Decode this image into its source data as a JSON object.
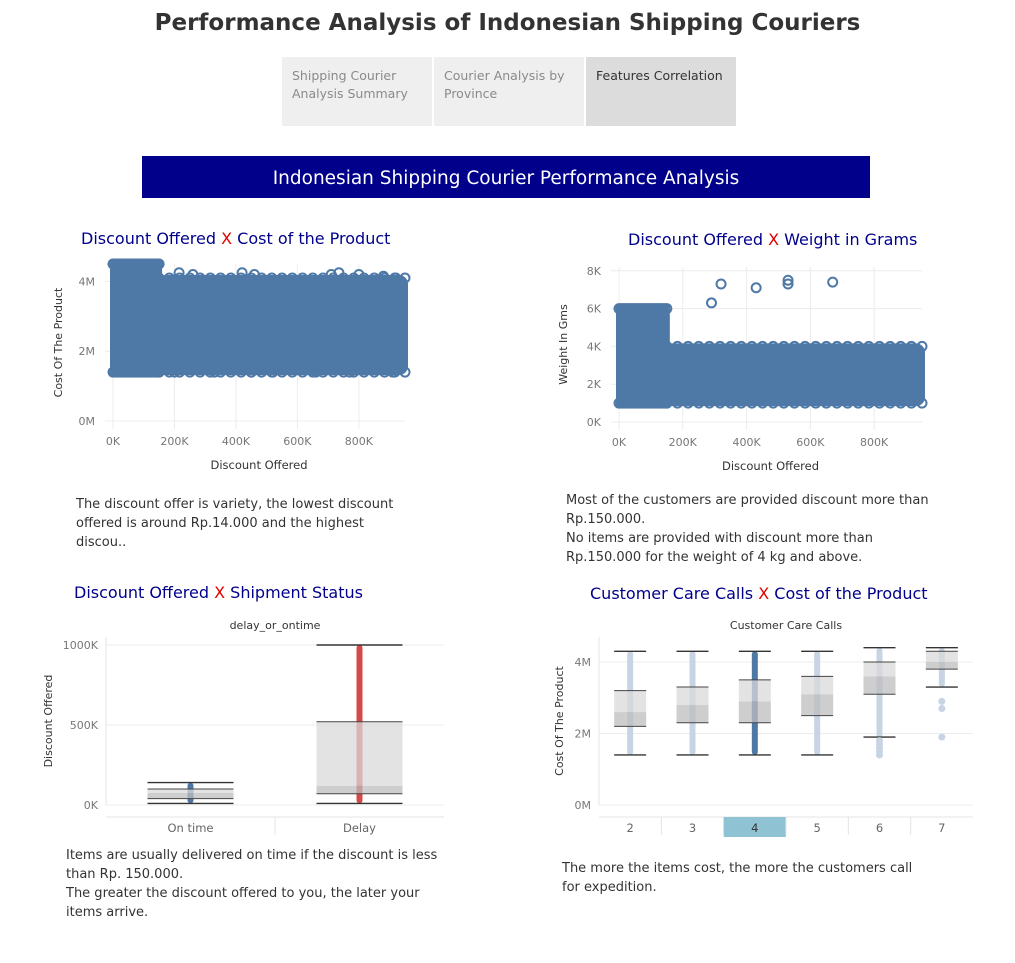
{
  "page": {
    "title": "Performance Analysis of Indonesian Shipping Couriers",
    "banner": "Indonesian Shipping Courier Performance Analysis"
  },
  "tabs": [
    {
      "label": "Shipping Courier Analysis Summary",
      "active": false
    },
    {
      "label": "Courier Analysis by Province",
      "active": false
    },
    {
      "label": "Features Correlation",
      "active": true
    }
  ],
  "colors": {
    "banner_bg": "#00008b",
    "title_blue": "#00008b",
    "x_red": "#e00000",
    "point_blue": "#4e79a7",
    "delay_red": "#d44a4a",
    "highlight": "#8fc3d4"
  },
  "charts": {
    "c1": {
      "title_a": "Discount Offered ",
      "title_x": "X",
      "title_b": " Cost of the Product",
      "desc": "The discount offer is variety, the lowest discount offered is around Rp.14.000 and the highest discou.."
    },
    "c2": {
      "title_a": "Discount Offered ",
      "title_x": "X",
      "title_b": " Weight in Grams",
      "desc_line1": "Most of the customers are provided discount more than Rp.150.000.",
      "desc_line2": "No items are provided with discount more than Rp.150.000 for the weight of 4 kg and above."
    },
    "c3": {
      "title_a": "Discount Offered ",
      "title_x": "X",
      "title_b": " Shipment Status",
      "desc_line1": "Items are usually delivered on time if the discount is less than Rp. 150.000.",
      "desc_line2": "The greater the discount offered to you, the later your items arrive."
    },
    "c4": {
      "title_a": "Customer Care Calls ",
      "title_x": "X",
      "title_b": " Cost of the Product",
      "desc": "The more the items cost, the more the customers call for expedition."
    }
  },
  "chart_data": [
    {
      "type": "scatter",
      "title": "Discount Offered X Cost of the Product",
      "xlabel": "Discount Offered",
      "ylabel": "Cost Of The Product",
      "xticks": [
        "0K",
        "200K",
        "400K",
        "600K",
        "800K"
      ],
      "yticks": [
        "0M",
        "2M",
        "4M"
      ],
      "xlim": [
        0,
        950000
      ],
      "ylim": [
        0,
        4500000
      ],
      "bands": [
        {
          "x": [
            0,
            150000
          ],
          "y": [
            1400000,
            4500000
          ]
        },
        {
          "x": [
            150000,
            950000
          ],
          "y": [
            1400000,
            4100000
          ]
        }
      ],
      "points": [
        {
          "x": 215000,
          "y": 4250000
        },
        {
          "x": 260000,
          "y": 4200000
        },
        {
          "x": 420000,
          "y": 4250000
        },
        {
          "x": 460000,
          "y": 4200000
        },
        {
          "x": 710000,
          "y": 4200000
        },
        {
          "x": 735000,
          "y": 4250000
        },
        {
          "x": 800000,
          "y": 4200000
        },
        {
          "x": 880000,
          "y": 4150000
        },
        {
          "x": 920000,
          "y": 4100000
        },
        {
          "x": 200000,
          "y": 1400000
        },
        {
          "x": 330000,
          "y": 1400000
        },
        {
          "x": 450000,
          "y": 1400000
        },
        {
          "x": 520000,
          "y": 1400000
        },
        {
          "x": 660000,
          "y": 1400000
        },
        {
          "x": 770000,
          "y": 1400000
        },
        {
          "x": 910000,
          "y": 1400000
        }
      ]
    },
    {
      "type": "scatter",
      "title": "Discount Offered X Weight in Grams",
      "xlabel": "Discount Offered",
      "ylabel": "Weight In Gms",
      "xticks": [
        "0K",
        "200K",
        "400K",
        "600K",
        "800K"
      ],
      "yticks": [
        "0K",
        "2K",
        "4K",
        "6K",
        "8K"
      ],
      "xlim": [
        0,
        950000
      ],
      "ylim": [
        0,
        8200
      ],
      "bands": [
        {
          "x": [
            0,
            150000
          ],
          "y": [
            1000,
            6000
          ]
        },
        {
          "x": [
            150000,
            950000
          ],
          "y": [
            1000,
            4000
          ]
        }
      ],
      "points": [
        {
          "x": 290000,
          "y": 6300
        },
        {
          "x": 320000,
          "y": 7300
        },
        {
          "x": 430000,
          "y": 7100
        },
        {
          "x": 530000,
          "y": 7300
        },
        {
          "x": 530000,
          "y": 7500
        },
        {
          "x": 670000,
          "y": 7400
        }
      ]
    },
    {
      "type": "box",
      "title": "Discount Offered X Shipment Status",
      "xlabel": "delay_or_ontime",
      "ylabel": "Discount Offered",
      "yticks": [
        "0K",
        "500K",
        "1000K"
      ],
      "ylim": [
        0,
        1050000
      ],
      "categories": [
        "On time",
        "Delay"
      ],
      "boxes": [
        {
          "min": 10000,
          "q1": 40000,
          "median": 75000,
          "q3": 100000,
          "max": 140000,
          "color": "#4e79a7"
        },
        {
          "min": 10000,
          "q1": 70000,
          "median": 120000,
          "q3": 520000,
          "max": 1000000,
          "color": "#d44a4a"
        }
      ]
    },
    {
      "type": "box",
      "title": "Customer Care Calls X Cost of the Product",
      "xlabel": "Customer Care Calls",
      "ylabel": "Cost Of The Product",
      "yticks": [
        "0M",
        "2M",
        "4M"
      ],
      "ylim": [
        0,
        4700000
      ],
      "categories": [
        "2",
        "3",
        "4",
        "5",
        "6",
        "7"
      ],
      "highlight": "4",
      "boxes": [
        {
          "min": 1400000,
          "q1": 2200000,
          "median": 2600000,
          "q3": 3200000,
          "max": 4300000
        },
        {
          "min": 1400000,
          "q1": 2300000,
          "median": 2800000,
          "q3": 3300000,
          "max": 4300000
        },
        {
          "min": 1400000,
          "q1": 2300000,
          "median": 2900000,
          "q3": 3500000,
          "max": 4300000
        },
        {
          "min": 1400000,
          "q1": 2500000,
          "median": 3100000,
          "q3": 3600000,
          "max": 4300000
        },
        {
          "min": 1900000,
          "q1": 3100000,
          "median": 3600000,
          "q3": 4000000,
          "max": 4400000
        },
        {
          "min": 3300000,
          "q1": 3800000,
          "median": 4000000,
          "q3": 4300000,
          "max": 4400000
        }
      ]
    }
  ]
}
